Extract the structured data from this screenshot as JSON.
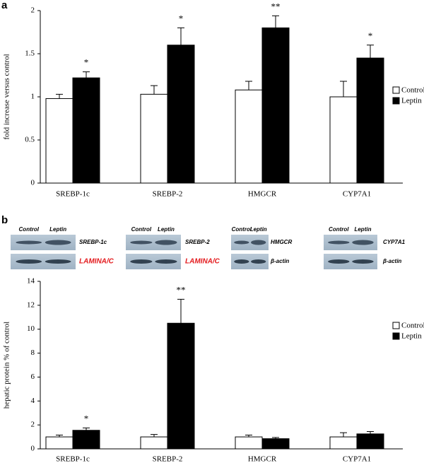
{
  "chart_data": [
    {
      "type": "bar",
      "label": "a",
      "ylabel": "fold increase versus control",
      "categories": [
        "SREBP-1c",
        "SREBP-2",
        "HMGCR",
        "CYP7A1"
      ],
      "series": [
        {
          "name": "Control",
          "color": "#ffffff",
          "values": [
            0.98,
            1.03,
            1.08,
            1.0
          ],
          "errors": [
            0.05,
            0.1,
            0.1,
            0.18
          ]
        },
        {
          "name": "Leptin",
          "color": "#000000",
          "values": [
            1.22,
            1.6,
            1.8,
            1.45
          ],
          "errors": [
            0.07,
            0.2,
            0.14,
            0.15
          ]
        }
      ],
      "annotations": [
        "*",
        "*",
        "**",
        "*"
      ],
      "ylim": [
        0,
        2
      ],
      "yticks": [
        0,
        0.5,
        1,
        1.5,
        2
      ],
      "legend": "right"
    },
    {
      "type": "bar",
      "label": "b",
      "ylabel": "hepatic protein % of control",
      "categories": [
        "SREBP-1c",
        "SREBP-2",
        "HMGCR",
        "CYP7A1"
      ],
      "series": [
        {
          "name": "Control",
          "color": "#ffffff",
          "values": [
            1,
            1,
            1,
            1
          ],
          "errors": [
            0.15,
            0.2,
            0.15,
            0.35
          ]
        },
        {
          "name": "Leptin",
          "color": "#000000",
          "values": [
            1.55,
            10.5,
            0.85,
            1.25
          ],
          "errors": [
            0.2,
            2.0,
            0.1,
            0.2
          ]
        }
      ],
      "annotations": [
        "*",
        "**",
        null,
        null
      ],
      "ylim": [
        0,
        14
      ],
      "yticks": [
        0,
        2,
        4,
        6,
        8,
        10,
        12,
        14
      ],
      "legend": "right"
    }
  ],
  "blots": [
    {
      "lanes": [
        "Control",
        "Leptin"
      ],
      "rows": [
        "SREBP-1c",
        "LAMINA/C"
      ]
    },
    {
      "lanes": [
        "Control",
        "Leptin"
      ],
      "rows": [
        "SREBP-2",
        "LAMINA/C"
      ]
    },
    {
      "lanes": [
        "Control",
        "Leptin"
      ],
      "rows": [
        "HMGCR",
        "β-actin"
      ]
    },
    {
      "lanes": [
        "Control",
        "Leptin"
      ],
      "rows": [
        "CYP7A1",
        "β-actin"
      ]
    }
  ]
}
